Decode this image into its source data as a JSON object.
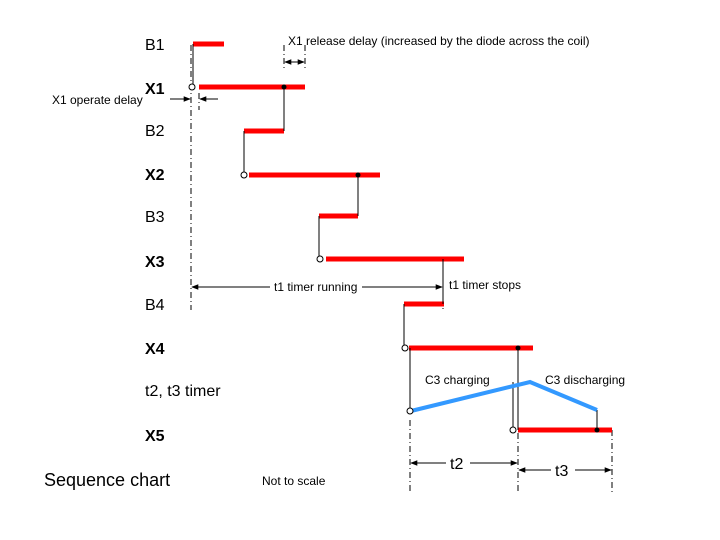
{
  "rows": {
    "b1": "B1",
    "x1": "X1",
    "b2": "B2",
    "x2": "X2",
    "b3": "B3",
    "x3": "X3",
    "b4": "B4",
    "x4": "X4",
    "t2t3": "t2, t3 timer",
    "x5": "X5"
  },
  "annotations": {
    "x1_release_delay": "X1 release delay (increased by the diode across the coil)",
    "x1_operate_delay": "X1 operate delay",
    "t1_running": "t1 timer running",
    "t1_stops": "t1 timer stops",
    "c3_charging": "C3 charging",
    "c3_discharging": "C3 discharging",
    "t2": "t2",
    "t3": "t3"
  },
  "footer": {
    "title": "Sequence chart",
    "scale_note": "Not to scale"
  },
  "colors": {
    "relay_bar": "#ff0000",
    "timer_line": "#3399ff",
    "lines": "#000000",
    "background": "#ffffff"
  }
}
